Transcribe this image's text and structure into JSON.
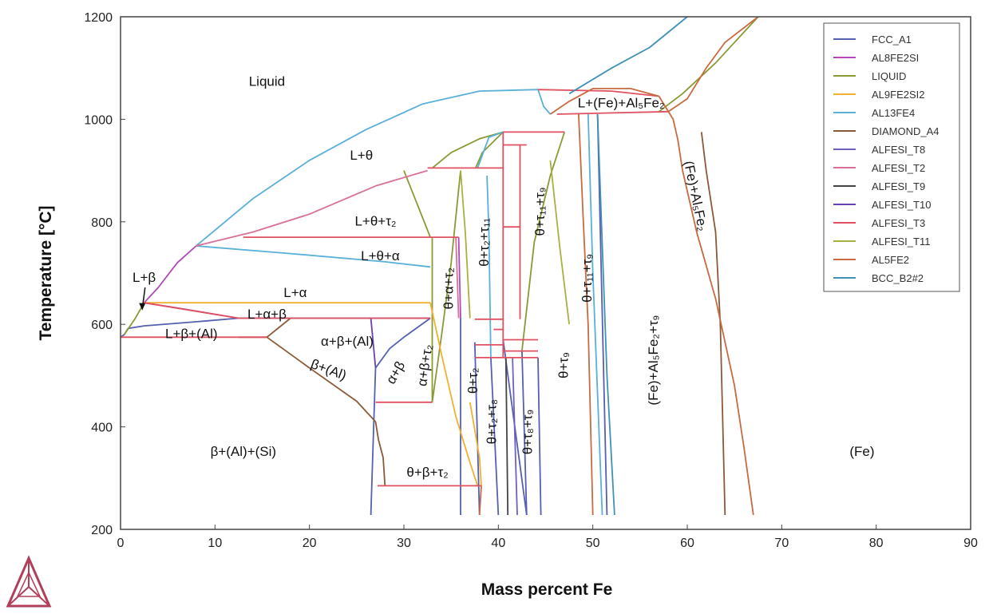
{
  "chart_data": {
    "type": "line",
    "title": "",
    "xlabel": "Mass percent Fe",
    "ylabel": "Temperature [°C]",
    "xlim": [
      0,
      90
    ],
    "ylim": [
      200,
      1200
    ],
    "x_ticks": [
      "0",
      "10",
      "20",
      "30",
      "40",
      "50",
      "60",
      "70",
      "80",
      "90"
    ],
    "y_ticks": [
      "200",
      "400",
      "600",
      "800",
      "1000",
      "1200"
    ],
    "legend_position": "top-right",
    "series": [
      {
        "name": "FCC_A1",
        "color": "#5560b0",
        "lines": [
          [
            [
              0,
              575
            ],
            [
              0.4,
              580
            ],
            [
              0.8,
              592
            ],
            [
              2.5,
              597
            ],
            [
              8,
              605
            ],
            [
              12.5,
              612
            ],
            [
              18,
              612
            ],
            [
              26.5,
              612
            ],
            [
              32.8,
              612
            ]
          ],
          [
            [
              27,
              515
            ],
            [
              28.5,
              553
            ],
            [
              30,
              575
            ],
            [
              32.8,
              612
            ]
          ],
          [
            [
              26.5,
              228
            ],
            [
              26.8,
              400
            ],
            [
              27,
              515
            ]
          ],
          [
            [
              36,
              612
            ],
            [
              36,
              228
            ]
          ],
          [
            [
              37.5,
              565
            ],
            [
              38,
              228
            ]
          ],
          [
            [
              39.2,
              535
            ],
            [
              40,
              228
            ]
          ],
          [
            [
              40.5,
              570
            ],
            [
              43,
              228
            ]
          ],
          [
            [
              42.5,
              548
            ],
            [
              43,
              228
            ]
          ],
          [
            [
              44.2,
              535
            ],
            [
              44.5,
              228
            ]
          ],
          [
            [
              50.5,
              1010
            ],
            [
              51.5,
              228
            ]
          ]
        ]
      },
      {
        "name": "AL8FE2SI",
        "color": "#b048b8",
        "lines": [
          [
            [
              2.5,
              642
            ],
            [
              4,
              672
            ],
            [
              6,
              720
            ],
            [
              8,
              753
            ]
          ],
          [
            [
              2.5,
              642
            ],
            [
              6,
              632
            ],
            [
              12.5,
              612
            ]
          ],
          [
            [
              35.8,
              770
            ],
            [
              36,
              612
            ]
          ]
        ]
      },
      {
        "name": "LIQUID",
        "color": "#8a9a35",
        "lines": [
          [
            [
              0.4,
              580
            ],
            [
              1.5,
              610
            ],
            [
              2.5,
              642
            ]
          ],
          [
            [
              33,
              448
            ],
            [
              33,
              770
            ]
          ],
          [
            [
              30,
              900
            ],
            [
              31.5,
              830
            ],
            [
              32.8,
              770
            ]
          ],
          [
            [
              36,
              900
            ],
            [
              35,
              720
            ],
            [
              34,
              580
            ],
            [
              33,
              448
            ]
          ],
          [
            [
              33,
              905
            ],
            [
              35,
              935
            ],
            [
              38,
              962
            ],
            [
              40.5,
              975
            ]
          ],
          [
            [
              37.6,
              905
            ],
            [
              38.3,
              935
            ],
            [
              40.5,
              975
            ]
          ],
          [
            [
              42.5,
              548
            ],
            [
              43.8,
              760
            ],
            [
              45.5,
              890
            ],
            [
              47,
              975
            ]
          ],
          [
            [
              57,
              1015
            ],
            [
              59.5,
              1050
            ],
            [
              63,
              1110
            ],
            [
              67.5,
              1200
            ]
          ]
        ]
      },
      {
        "name": "AL9FE2SI2",
        "color": "#f0b030",
        "lines": [
          [
            [
              2.5,
              642
            ],
            [
              32.8,
              642
            ]
          ],
          [
            [
              37,
              448
            ],
            [
              38,
              340
            ],
            [
              38.2,
              285
            ]
          ],
          [
            [
              32.8,
              642
            ],
            [
              34,
              540
            ],
            [
              35.5,
              420
            ],
            [
              37,
              330
            ],
            [
              37.8,
              285
            ]
          ]
        ]
      },
      {
        "name": "AL13FE4",
        "color": "#5ab0d8",
        "lines": [
          [
            [
              8,
              753
            ],
            [
              14,
              845
            ],
            [
              20,
              920
            ],
            [
              26,
              980
            ],
            [
              32,
              1030
            ],
            [
              38,
              1055
            ],
            [
              44.2,
              1058
            ]
          ],
          [
            [
              8,
              753
            ],
            [
              18,
              738
            ],
            [
              28,
              722
            ],
            [
              32.8,
              712
            ]
          ],
          [
            [
              44.2,
              1058
            ],
            [
              44.8,
              1025
            ],
            [
              45.5,
              1010
            ]
          ],
          [
            [
              38.8,
              890
            ],
            [
              39,
              780
            ],
            [
              39.2,
              535
            ]
          ],
          [
            [
              37.8,
              905
            ],
            [
              39,
              965
            ],
            [
              40.5,
              975
            ]
          ],
          [
            [
              49.5,
              1010
            ],
            [
              50,
              700
            ],
            [
              51,
              228
            ]
          ]
        ]
      },
      {
        "name": "DIAMOND_A4",
        "color": "#8a5a38",
        "lines": [
          [
            [
              12.5,
              575
            ],
            [
              15.5,
              575
            ],
            [
              20,
              515
            ],
            [
              25,
              450
            ],
            [
              27,
              410
            ]
          ],
          [
            [
              15.5,
              575
            ],
            [
              18,
              612
            ]
          ],
          [
            [
              27,
              410
            ],
            [
              27.3,
              375
            ],
            [
              27.8,
              340
            ],
            [
              28,
              285
            ]
          ],
          [
            [
              61.5,
              975
            ],
            [
              62,
              900
            ],
            [
              63,
              780
            ],
            [
              63.5,
              600
            ],
            [
              64,
              228
            ]
          ]
        ]
      },
      {
        "name": "ALFESI_T8",
        "color": "#6e60c0",
        "lines": [
          [
            [
              41.5,
              535
            ],
            [
              42,
              228
            ]
          ]
        ]
      },
      {
        "name": "ALFESI_T2",
        "color": "#d8709a",
        "lines": [
          [
            [
              8,
              753
            ],
            [
              14,
              780
            ],
            [
              20,
              815
            ],
            [
              27,
              870
            ],
            [
              32.5,
              900
            ]
          ],
          [
            [
              35.5,
              770
            ],
            [
              35.8,
              612
            ]
          ]
        ]
      },
      {
        "name": "ALFESI_T9",
        "color": "#444444",
        "lines": [
          [
            [
              40.8,
              535
            ],
            [
              41,
              228
            ]
          ]
        ]
      },
      {
        "name": "ALFESI_T10",
        "color": "#6a40b0",
        "lines": [
          [
            [
              26.5,
              612
            ],
            [
              27,
              515
            ]
          ]
        ]
      },
      {
        "name": "ALFESI_T3",
        "color": "#e05060",
        "lines": [
          [
            [
              0,
              575
            ],
            [
              15.5,
              575
            ]
          ],
          [
            [
              2.5,
              642
            ],
            [
              12.5,
              612
            ]
          ],
          [
            [
              12.5,
              612
            ],
            [
              32.8,
              612
            ]
          ],
          [
            [
              13,
              770
            ],
            [
              35.8,
              770
            ]
          ],
          [
            [
              32.5,
              905
            ],
            [
              40.5,
              905
            ]
          ],
          [
            [
              27,
              448
            ],
            [
              33,
              448
            ]
          ],
          [
            [
              27.2,
              285
            ],
            [
              38.2,
              285
            ]
          ],
          [
            [
              40.5,
              975
            ],
            [
              47,
              975
            ]
          ],
          [
            [
              40.5,
              950
            ],
            [
              43,
              950
            ]
          ],
          [
            [
              40.5,
              790
            ],
            [
              42.3,
              790
            ]
          ],
          [
            [
              46.2,
              1010
            ],
            [
              58,
              1015
            ]
          ],
          [
            [
              44.2,
              1058
            ],
            [
              52,
              1055
            ],
            [
              57,
              1045
            ]
          ],
          [
            [
              40.5,
              975
            ],
            [
              40.5,
              535
            ]
          ],
          [
            [
              42.3,
              950
            ],
            [
              42.3,
              610
            ]
          ],
          [
            [
              37.5,
              610
            ],
            [
              40.5,
              610
            ]
          ],
          [
            [
              37.5,
              560
            ],
            [
              40.5,
              560
            ]
          ],
          [
            [
              39.5,
              590
            ],
            [
              40.5,
              590
            ]
          ],
          [
            [
              40.5,
              570
            ],
            [
              44.2,
              570
            ]
          ],
          [
            [
              40.5,
              548
            ],
            [
              44.2,
              548
            ]
          ],
          [
            [
              37.5,
              535
            ],
            [
              44.2,
              535
            ]
          ]
        ]
      },
      {
        "name": "ALFESI_T11",
        "color": "#a8b040",
        "lines": [
          [
            [
              36,
              900
            ],
            [
              36.5,
              780
            ],
            [
              37,
              612
            ]
          ],
          [
            [
              45.5,
              920
            ],
            [
              46.5,
              750
            ],
            [
              47.5,
              600
            ]
          ]
        ]
      },
      {
        "name": "AL5FE2",
        "color": "#c86a40",
        "lines": [
          [
            [
              45.5,
              1010
            ],
            [
              47.5,
              1035
            ],
            [
              50,
              1060
            ],
            [
              54,
              1060
            ],
            [
              57,
              1045
            ]
          ],
          [
            [
              57,
              1045
            ],
            [
              58.5,
              1000
            ],
            [
              59,
              960
            ],
            [
              59.5,
              900
            ]
          ],
          [
            [
              48.5,
              1010
            ],
            [
              49,
              800
            ],
            [
              49.5,
              600
            ],
            [
              50,
              228
            ]
          ],
          [
            [
              59.5,
              900
            ],
            [
              61,
              780
            ],
            [
              63,
              650
            ],
            [
              65,
              480
            ],
            [
              66,
              360
            ],
            [
              67,
              228
            ]
          ],
          [
            [
              58,
              1015
            ],
            [
              60,
              1040
            ],
            [
              62,
              1100
            ],
            [
              64,
              1150
            ],
            [
              67.5,
              1200
            ]
          ],
          [
            [
              38.2,
              285
            ],
            [
              38,
              228
            ]
          ]
        ]
      },
      {
        "name": "BCC_B2#2",
        "color": "#4090b8",
        "lines": [
          [
            [
              47.5,
              1050
            ],
            [
              52,
              1100
            ],
            [
              56,
              1140
            ],
            [
              60,
              1200
            ]
          ],
          [
            [
              50.5,
              1010
            ],
            [
              51.5,
              500
            ],
            [
              52.3,
              228
            ]
          ]
        ]
      }
    ],
    "annotations": [
      {
        "text": "Liquid",
        "x": 15.5,
        "y": 1072,
        "angle": 0
      },
      {
        "text": "L+θ",
        "x": 25.5,
        "y": 928,
        "angle": 0
      },
      {
        "text": "L+θ+τ₂",
        "x": 27,
        "y": 800,
        "angle": 0
      },
      {
        "text": "L+θ+α",
        "x": 27.5,
        "y": 732,
        "angle": 0
      },
      {
        "text": "L+α",
        "x": 18.5,
        "y": 660,
        "angle": 0
      },
      {
        "text": "L+β",
        "x": 2.5,
        "y": 690,
        "angle": 0
      },
      {
        "text": "L+α+β",
        "x": 15.5,
        "y": 618,
        "angle": 0
      },
      {
        "text": "L+β+(Al)",
        "x": 7.5,
        "y": 580,
        "angle": 0
      },
      {
        "text": "α+β+(Al)",
        "x": 24,
        "y": 565,
        "angle": 0
      },
      {
        "text": "β+(Al)",
        "x": 22,
        "y": 510,
        "angle": 20
      },
      {
        "text": "α+β",
        "x": 29.2,
        "y": 505,
        "angle": -60
      },
      {
        "text": "α+β+τ₂",
        "x": 32.3,
        "y": 520,
        "angle": -82
      },
      {
        "text": "θ+α+τ₂",
        "x": 34.8,
        "y": 670,
        "angle": -90
      },
      {
        "text": "θ+τ₂+τ₁₁",
        "x": 38.6,
        "y": 760,
        "angle": -90
      },
      {
        "text": "θ+τ₁₁+τ₉",
        "x": 44.5,
        "y": 820,
        "angle": -90
      },
      {
        "text": "θ+τ₁₁+τ₉",
        "x": 49.5,
        "y": 690,
        "angle": -90
      },
      {
        "text": "θ+τ₂",
        "x": 37.4,
        "y": 490,
        "angle": -90
      },
      {
        "text": "θ+τ₂+τ₈",
        "x": 39.4,
        "y": 410,
        "angle": -90
      },
      {
        "text": "θ+τ₈+τ₉",
        "x": 43.2,
        "y": 390,
        "angle": -90
      },
      {
        "text": "θ+τ₉",
        "x": 47,
        "y": 520,
        "angle": -90
      },
      {
        "text": "(Fe)+Al₅Fe₂+τ₉",
        "x": 56.5,
        "y": 530,
        "angle": -90
      },
      {
        "text": "(Fe)+Al₅Fe₂",
        "x": 60.8,
        "y": 850,
        "angle": 78
      },
      {
        "text": "L+(Fe)+Al₅Fe₂",
        "x": 53,
        "y": 1030,
        "angle": 0
      },
      {
        "text": "θ+β+τ₂",
        "x": 32.5,
        "y": 310,
        "angle": 0
      },
      {
        "text": "β+(Al)+(Si)",
        "x": 13,
        "y": 350,
        "angle": 0
      },
      {
        "text": "(Fe)",
        "x": 78.5,
        "y": 350,
        "angle": 0
      }
    ]
  }
}
